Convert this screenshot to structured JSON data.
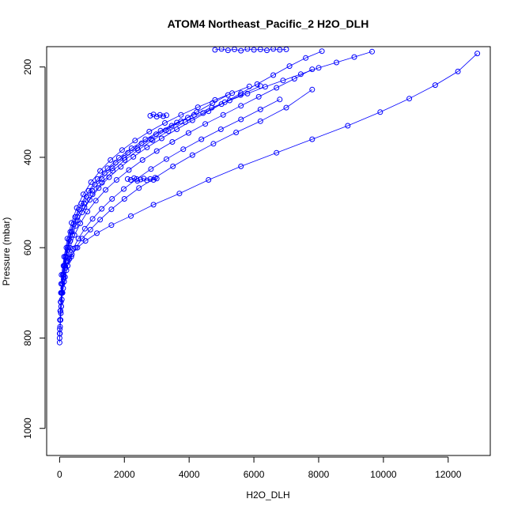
{
  "chart_data": {
    "type": "scatter",
    "title": "ATOM4 Northeast_Pacific_2 H2O_DLH",
    "xlabel": "H2O_DLH",
    "ylabel": "Pressure (mbar)",
    "xlim": [
      -400,
      13300
    ],
    "ylim": [
      1060,
      155
    ],
    "y_axis_reversed": true,
    "x_ticks": [
      0,
      2000,
      4000,
      6000,
      8000,
      10000,
      12000
    ],
    "y_ticks": [
      200,
      400,
      600,
      800,
      1000
    ],
    "marker": "open-circle",
    "connect_points": true,
    "color": "#0000ff",
    "grid": false,
    "legend": "none",
    "series": [
      {
        "x": [
          0,
          10,
          30,
          50,
          80,
          120,
          180,
          260,
          380,
          550,
          800,
          1150,
          1600,
          2200,
          2900,
          3700,
          4600,
          5600,
          6700,
          7800,
          8900,
          9900,
          10800,
          11600,
          12300,
          12900
        ],
        "y": [
          810,
          790,
          760,
          730,
          700,
          670,
          645,
          630,
          615,
          600,
          585,
          568,
          550,
          530,
          505,
          480,
          450,
          420,
          390,
          360,
          330,
          300,
          270,
          240,
          210,
          170
        ]
      },
      {
        "x": [
          0,
          15,
          40,
          70,
          110,
          170,
          250,
          360,
          500,
          700,
          950,
          1250,
          1600,
          2000,
          2450,
          2950,
          3500,
          4100,
          4750,
          5450,
          6200,
          7000,
          7800
        ],
        "y": [
          800,
          775,
          745,
          715,
          690,
          665,
          640,
          620,
          600,
          580,
          560,
          538,
          515,
          492,
          468,
          445,
          420,
          395,
          370,
          345,
          320,
          290,
          250
        ]
      },
      {
        "x": [
          0,
          20,
          50,
          90,
          140,
          210,
          300,
          420,
          580,
          780,
          1020,
          1300,
          1620,
          1980,
          2380,
          2820,
          3300,
          3820,
          4380,
          4980,
          5600,
          6200,
          6800
        ],
        "y": [
          790,
          760,
          730,
          700,
          675,
          650,
          625,
          602,
          580,
          558,
          536,
          514,
          492,
          470,
          448,
          426,
          404,
          382,
          360,
          338,
          316,
          294,
          272
        ]
      },
      {
        "x": [
          5,
          30,
          70,
          130,
          210,
          320,
          460,
          640,
          860,
          1120,
          1420,
          1760,
          2140,
          2560,
          3000,
          3480,
          3980,
          4500,
          5050,
          5600,
          6150,
          6700,
          7250,
          7800
        ],
        "y": [
          780,
          740,
          700,
          665,
          630,
          600,
          572,
          546,
          520,
          496,
          472,
          450,
          428,
          406,
          386,
          366,
          346,
          326,
          306,
          286,
          266,
          246,
          226,
          205
        ]
      },
      {
        "x": [
          10,
          40,
          90,
          160,
          260,
          390,
          560,
          770,
          1020,
          1310,
          1640,
          2010,
          2420,
          2870,
          3360,
          3880,
          4430,
          5000,
          5590,
          6200
        ],
        "y": [
          760,
          720,
          680,
          640,
          605,
          572,
          540,
          510,
          482,
          456,
          430,
          406,
          384,
          362,
          342,
          322,
          302,
          282,
          262,
          242
        ]
      },
      {
        "x": [
          20,
          60,
          120,
          210,
          330,
          490,
          690,
          930,
          1210,
          1530,
          1890,
          2280,
          2700,
          3150,
          3620,
          4100,
          4600,
          5100,
          5600,
          6100,
          6600,
          7100,
          7600,
          8100
        ],
        "y": [
          740,
          700,
          660,
          620,
          585,
          552,
          522,
          494,
          468,
          444,
          421,
          399,
          378,
          358,
          338,
          318,
          298,
          278,
          258,
          238,
          218,
          198,
          180,
          165
        ]
      },
      {
        "x": [
          30,
          80,
          150,
          250,
          380,
          550,
          760,
          1010,
          1300,
          1630,
          2000,
          2400,
          2830,
          3280,
          3750,
          4230,
          4720,
          5200
        ],
        "y": [
          720,
          680,
          640,
          600,
          565,
          532,
          502,
          474,
          448,
          424,
          401,
          380,
          360,
          340,
          320,
          300,
          280,
          262
        ]
      },
      {
        "x": [
          40,
          100,
          180,
          290,
          430,
          610,
          830,
          1090,
          1390,
          1730,
          2110,
          2530,
          2980,
          3460,
          3960
        ],
        "y": [
          700,
          660,
          620,
          582,
          548,
          516,
          487,
          460,
          435,
          412,
          390,
          369,
          349,
          330,
          312
        ]
      },
      {
        "x": [
          50,
          120,
          210,
          330,
          480,
          670,
          900,
          1170,
          1480,
          1830,
          2220,
          2650,
          3120,
          3620,
          4150,
          4700,
          5250,
          5800,
          6350,
          6900,
          7450,
          8000,
          8550,
          9100,
          9650
        ],
        "y": [
          680,
          640,
          600,
          565,
          532,
          502,
          474,
          448,
          424,
          401,
          380,
          360,
          341,
          323,
          306,
          290,
          274,
          259,
          244,
          230,
          216,
          202,
          190,
          178,
          166
        ]
      },
      {
        "x": [
          60,
          140,
          240,
          370,
          530,
          730,
          970,
          1250,
          1570,
          1930,
          2330,
          2770,
          3250,
          3750,
          4270,
          4800,
          5330,
          5860
        ],
        "y": [
          660,
          620,
          580,
          545,
          512,
          482,
          455,
          430,
          406,
          384,
          363,
          343,
          324,
          306,
          289,
          273,
          258,
          243
        ]
      },
      {
        "x": [
          2100,
          2200,
          2300,
          2400,
          2500,
          2600,
          2700,
          2800,
          2900,
          3000
        ],
        "y": [
          448,
          450,
          446,
          452,
          449,
          447,
          451,
          448,
          450,
          447
        ]
      },
      {
        "x": [
          2800,
          2900,
          3000,
          3100,
          3200,
          3300
        ],
        "y": [
          308,
          305,
          310,
          306,
          309,
          307
        ]
      },
      {
        "x": [
          4800,
          5000,
          5200,
          5400,
          5600,
          5800,
          6000,
          6200,
          6400,
          6600,
          6800,
          7000
        ],
        "y": [
          162,
          160,
          163,
          161,
          164,
          160,
          162,
          161,
          163,
          160,
          162,
          161
        ]
      }
    ]
  }
}
